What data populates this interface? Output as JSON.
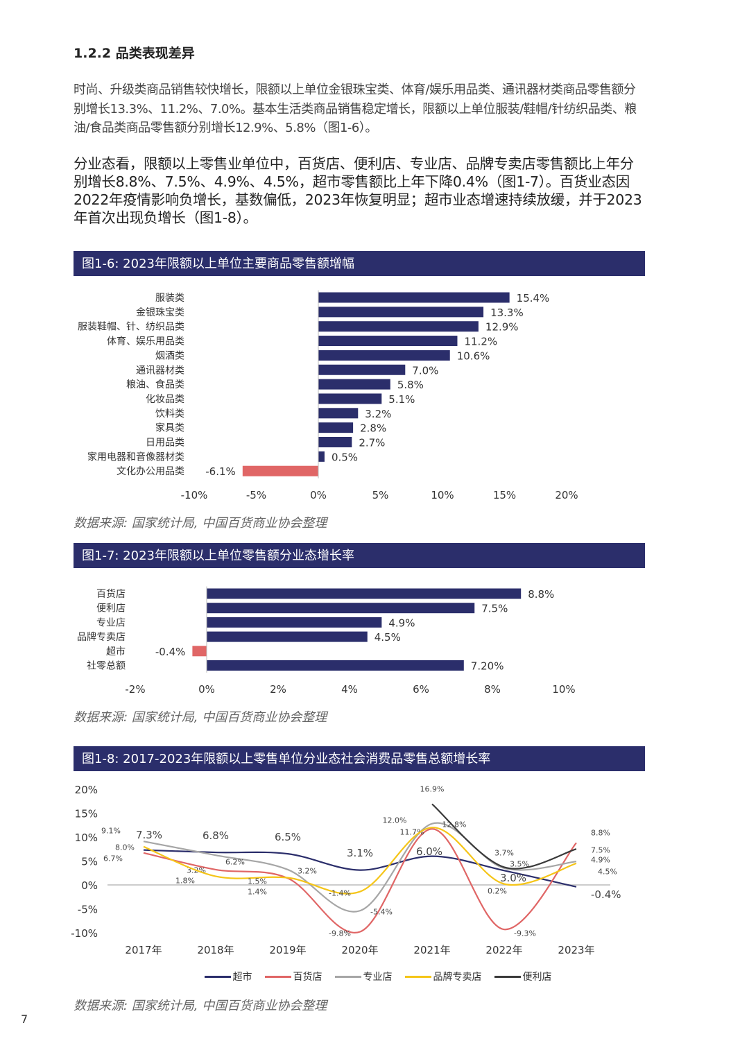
{
  "section_title": "1.2.2 品类表现差异",
  "paragraphs": [
    "时尚、升级类商品销售较快增长，限额以上单位金银珠宝类、体育/娱乐用品类、通讯器材类商品零售额分别增长13.3%、11.2%、7.0%。基本生活类商品销售稳定增长，限额以上单位服装/鞋帽/针纺织品类、粮油/食品类商品零售额分别增长12.9%、5.8%（图1-6）。",
    "分业态看，限额以上零售业单位中，百货店、便利店、专业店、品牌专卖店零售额比上年分别增长8.8%、7.5%、4.9%、4.5%，超市零售额比上年下降0.4%（图1-7）。百货业态因2022年疫情影响负增长，基数偏低，2023年恢复明显；超市业态增速持续放缓，并于2023年首次出现负增长（图1-8）。"
  ],
  "colors": {
    "header": "#2b2e6b",
    "positive": "#2b2e6b",
    "negative": "#e06666"
  },
  "figures": [
    {
      "title": "图1-6: 2023年限额以上单位主要商品零售额增幅",
      "source": "数据来源: 国家统计局, 中国百货商业协会整理"
    },
    {
      "title": "图1-7: 2023年限额以上单位零售额分业态增长率",
      "source": "数据来源: 国家统计局, 中国百货商业协会整理"
    },
    {
      "title": "图1-8: 2017-2023年限额以上零售单位分业态社会消费品零售总额增长率",
      "source": "数据来源: 国家统计局, 中国百货商业协会整理"
    }
  ],
  "page_number": "7",
  "chart_data": [
    {
      "type": "bar",
      "orientation": "horizontal",
      "categories": [
        "服装类",
        "金银珠宝类",
        "服装鞋帽、针、纺织品类",
        "体育、娱乐用品类",
        "烟酒类",
        "通讯器材类",
        "粮油、食品类",
        "化妆品类",
        "饮料类",
        "家具类",
        "日用品类",
        "家用电器和音像器材类",
        "文化办公用品类"
      ],
      "values": [
        15.4,
        13.3,
        12.9,
        11.2,
        10.6,
        7.0,
        5.8,
        5.1,
        3.2,
        2.8,
        2.7,
        0.5,
        -6.1
      ],
      "data_labels": [
        "15.4%",
        "13.3%",
        "12.9%",
        "11.2%",
        "10.6%",
        "7.0%",
        "5.8%",
        "5.1%",
        "3.2%",
        "2.8%",
        "2.7%",
        "0.5%",
        "-6.1%"
      ],
      "xlim": [
        -10,
        20
      ],
      "xticks": [
        "-10%",
        "-5%",
        "0%",
        "5%",
        "10%",
        "15%",
        "20%"
      ],
      "grid": false
    },
    {
      "type": "bar",
      "orientation": "horizontal",
      "categories": [
        "百货店",
        "便利店",
        "专业店",
        "品牌专卖店",
        "超市",
        "社零总额"
      ],
      "values": [
        8.8,
        7.5,
        4.9,
        4.5,
        -0.4,
        7.2
      ],
      "data_labels": [
        "8.8%",
        "7.5%",
        "4.9%",
        "4.5%",
        "-0.4%",
        "7.20%"
      ],
      "xlim": [
        -2,
        10
      ],
      "xticks": [
        "-2%",
        "0%",
        "2%",
        "4%",
        "6%",
        "8%",
        "10%"
      ],
      "grid": false
    },
    {
      "type": "line",
      "smooth": true,
      "categories": [
        "2017年",
        "2018年",
        "2019年",
        "2020年",
        "2021年",
        "2022年",
        "2023年"
      ],
      "ylim": [
        -10,
        20
      ],
      "yticks": [
        "20%",
        "15%",
        "10%",
        "5%",
        "0%",
        "-5%",
        "-10%"
      ],
      "legend_position": "bottom",
      "grid": false,
      "series": [
        {
          "name": "超市",
          "color": "#2b2e6b",
          "values": [
            7.3,
            6.8,
            6.5,
            3.1,
            6.0,
            3.0,
            -0.4
          ],
          "labels": [
            "7.3%",
            "6.8%",
            "6.5%",
            "3.1%",
            "6.0%",
            "3.0%",
            "-0.4%"
          ]
        },
        {
          "name": "百货店",
          "color": "#e06666",
          "values": [
            6.7,
            3.2,
            1.4,
            -9.8,
            11.7,
            -9.3,
            8.8
          ],
          "labels": [
            "6.7%",
            "3.2%",
            "1.4%",
            "-9.8%",
            "11.7%",
            "-9.3%",
            "8.8%"
          ]
        },
        {
          "name": "专业店",
          "color": "#a6a6a6",
          "values": [
            9.1,
            6.2,
            3.2,
            -5.4,
            12.8,
            3.5,
            4.9
          ],
          "labels": [
            "9.1%",
            "6.2%",
            "3.2%",
            "-5.4%",
            "12.8%",
            "3.5%",
            "4.9%"
          ]
        },
        {
          "name": "品牌专卖店",
          "color": "#f5c518",
          "values": [
            8.0,
            1.8,
            1.5,
            -1.4,
            12.0,
            0.2,
            4.5
          ],
          "labels": [
            "8.0%",
            "1.8%",
            "1.5%",
            "-1.4%",
            "12.0%",
            "0.2%",
            "4.5%"
          ]
        },
        {
          "name": "便利店",
          "color": "#3a3a3a",
          "values": [
            null,
            null,
            null,
            null,
            16.9,
            3.7,
            7.5
          ],
          "labels": [
            "",
            "",
            "",
            "",
            "16.9%",
            "3.7%",
            "7.5%"
          ]
        }
      ]
    }
  ]
}
